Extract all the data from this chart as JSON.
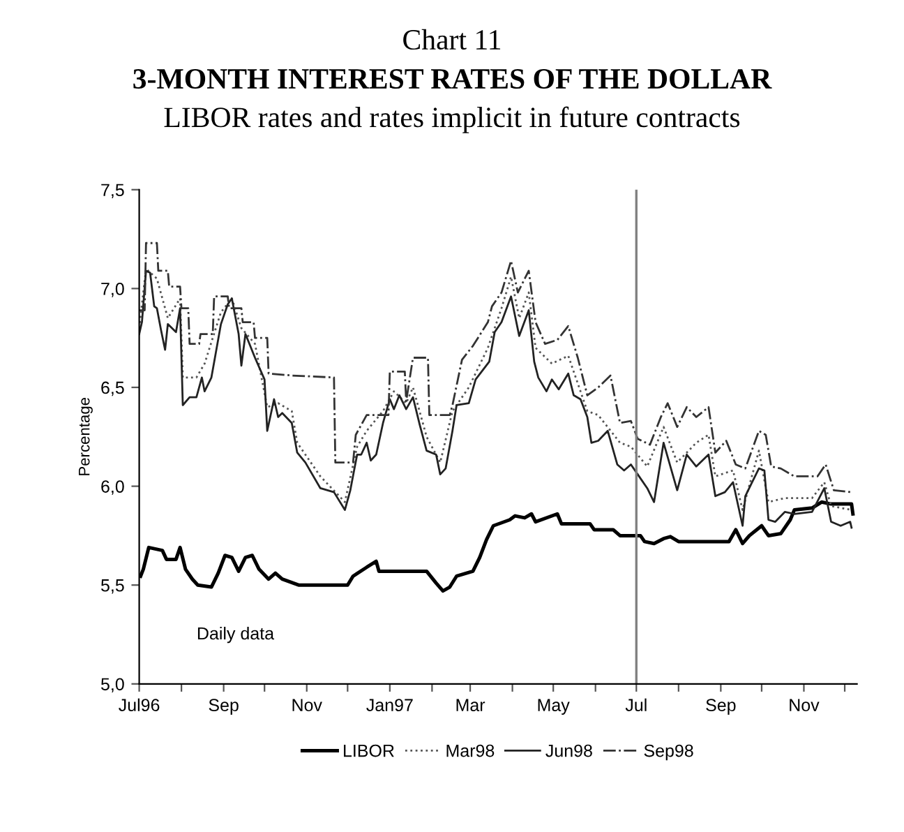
{
  "chart_data": {
    "type": "line",
    "title": "Chart 11",
    "subtitle": "3-MONTH INTEREST RATES OF THE DOLLAR\nLIBOR rates and rates implicit in future contracts",
    "ylabel": "Percentage",
    "xlim": [
      "1996-07-01",
      "1997-12-10"
    ],
    "xticks": [
      {
        "value": "1996-07-01",
        "label": "Jul96"
      },
      {
        "value": "1996-08-01",
        "label": null
      },
      {
        "value": "1996-09-01",
        "label": "Sep"
      },
      {
        "value": "1996-10-01",
        "label": null
      },
      {
        "value": "1996-11-01",
        "label": "Nov"
      },
      {
        "value": "1996-12-01",
        "label": null
      },
      {
        "value": "1997-01-01",
        "label": "Jan97"
      },
      {
        "value": "1997-02-01",
        "label": null
      },
      {
        "value": "1997-03-01",
        "label": "Mar"
      },
      {
        "value": "1997-04-01",
        "label": null
      },
      {
        "value": "1997-05-01",
        "label": "May"
      },
      {
        "value": "1997-06-01",
        "label": null
      },
      {
        "value": "1997-07-01",
        "label": "Jul"
      },
      {
        "value": "1997-08-01",
        "label": null
      },
      {
        "value": "1997-09-01",
        "label": "Sep"
      },
      {
        "value": "1997-10-01",
        "label": null
      },
      {
        "value": "1997-11-01",
        "label": "Nov"
      },
      {
        "value": "1997-12-01",
        "label": null
      }
    ],
    "ylim": [
      5.0,
      7.5
    ],
    "yticks": [
      {
        "value": 5.0,
        "label": "5,0"
      },
      {
        "value": 5.5,
        "label": "5,5"
      },
      {
        "value": 6.0,
        "label": "6,0"
      },
      {
        "value": 6.5,
        "label": "6,5"
      },
      {
        "value": 7.0,
        "label": "7,0"
      },
      {
        "value": 7.5,
        "label": "7,5"
      }
    ],
    "grid": false,
    "legend": "bottom",
    "marker": "none",
    "ref_lines": [
      {
        "axis": "x",
        "value": "1997-07-01",
        "color": "#808080"
      }
    ],
    "annotations": [
      "Daily data"
    ],
    "series": [
      {
        "name": "LIBOR",
        "color": "#000000",
        "line_style": "solid",
        "x": [
          "1996-07-02",
          "1996-07-04",
          "1996-07-08",
          "1996-07-18",
          "1996-07-21",
          "1996-07-28",
          "1996-07-31",
          "1996-08-04",
          "1996-08-09",
          "1996-08-13",
          "1996-08-23",
          "1996-08-28",
          "1996-09-02",
          "1996-09-07",
          "1996-09-12",
          "1996-09-17",
          "1996-09-22",
          "1996-09-27",
          "1996-10-04",
          "1996-10-09",
          "1996-10-14",
          "1996-10-26",
          "1996-12-01",
          "1996-12-05",
          "1996-12-15",
          "1996-12-22",
          "1996-12-24",
          "1997-01-28",
          "1997-02-04",
          "1997-02-09",
          "1997-02-14",
          "1997-02-19",
          "1997-03-03",
          "1997-03-08",
          "1997-03-13",
          "1997-03-18",
          "1997-03-30",
          "1997-04-03",
          "1997-04-10",
          "1997-04-15",
          "1997-04-18",
          "1997-05-04",
          "1997-05-07",
          "1997-05-28",
          "1997-05-31",
          "1997-06-14",
          "1997-06-19",
          "1997-07-04",
          "1997-07-07",
          "1997-07-14",
          "1997-07-21",
          "1997-07-26",
          "1997-08-01",
          "1997-09-07",
          "1997-09-12",
          "1997-09-17",
          "1997-09-22",
          "1997-10-01",
          "1997-10-06",
          "1997-10-15",
          "1997-10-22",
          "1997-10-25",
          "1997-11-07",
          "1997-11-14",
          "1997-11-21",
          "1997-12-06",
          "1997-12-07"
        ],
        "values": [
          5.545,
          5.58,
          5.69,
          5.675,
          5.63,
          5.63,
          5.69,
          5.58,
          5.53,
          5.5,
          5.49,
          5.56,
          5.65,
          5.64,
          5.57,
          5.64,
          5.65,
          5.58,
          5.53,
          5.56,
          5.53,
          5.5,
          5.5,
          5.545,
          5.59,
          5.62,
          5.57,
          5.57,
          5.51,
          5.47,
          5.49,
          5.545,
          5.57,
          5.64,
          5.73,
          5.8,
          5.83,
          5.85,
          5.84,
          5.86,
          5.82,
          5.86,
          5.81,
          5.81,
          5.78,
          5.78,
          5.75,
          5.75,
          5.72,
          5.71,
          5.735,
          5.745,
          5.72,
          5.72,
          5.78,
          5.71,
          5.75,
          5.8,
          5.75,
          5.76,
          5.83,
          5.88,
          5.89,
          5.92,
          5.91,
          5.91,
          5.86
        ]
      },
      {
        "name": "Mar98",
        "color": "#555555",
        "line_style": "dotted",
        "x": [
          "1996-07-01",
          "1996-07-06",
          "1996-07-14",
          "1996-07-22",
          "1996-07-31",
          "1996-08-02",
          "1996-08-12",
          "1996-08-18",
          "1996-08-30",
          "1996-09-07",
          "1996-09-14",
          "1996-09-24",
          "1996-10-03",
          "1996-10-11",
          "1996-10-21",
          "1996-10-25",
          "1996-11-11",
          "1996-11-29",
          "1996-12-08",
          "1996-12-15",
          "1996-12-27",
          "1997-01-04",
          "1997-01-13",
          "1997-01-18",
          "1997-01-28",
          "1997-02-07",
          "1997-02-16",
          "1997-02-28",
          "1997-03-14",
          "1997-03-24",
          "1997-03-31",
          "1997-04-06",
          "1997-04-13",
          "1997-04-18",
          "1997-04-30",
          "1997-05-12",
          "1997-05-26",
          "1997-06-03",
          "1997-06-19",
          "1997-06-27",
          "1997-07-09",
          "1997-07-21",
          "1997-07-31",
          "1997-08-14",
          "1997-08-23",
          "1997-08-28",
          "1997-09-10",
          "1997-09-17",
          "1997-09-29",
          "1997-10-06",
          "1997-10-18",
          "1997-11-07",
          "1997-11-16",
          "1997-11-21",
          "1997-12-06"
        ],
        "values": [
          6.8,
          7.1,
          7.05,
          6.85,
          6.95,
          6.55,
          6.55,
          6.62,
          6.88,
          6.95,
          6.8,
          6.72,
          6.4,
          6.42,
          6.38,
          6.22,
          6.05,
          5.92,
          6.2,
          6.28,
          6.38,
          6.48,
          6.42,
          6.5,
          6.25,
          6.12,
          6.38,
          6.5,
          6.7,
          6.9,
          7.06,
          6.85,
          6.98,
          6.7,
          6.62,
          6.66,
          6.38,
          6.36,
          6.22,
          6.2,
          6.1,
          6.3,
          6.12,
          6.22,
          6.26,
          6.05,
          6.08,
          5.88,
          6.18,
          5.92,
          5.94,
          5.94,
          6.02,
          5.9,
          5.88
        ]
      },
      {
        "name": "Jun98",
        "color": "#222222",
        "line_style": "solid",
        "x": [
          "1996-07-01",
          "1996-07-03",
          "1996-07-06",
          "1996-07-09",
          "1996-07-12",
          "1996-07-14",
          "1996-07-17",
          "1996-07-20",
          "1996-07-22",
          "1996-07-28",
          "1996-07-31",
          "1996-08-02",
          "1996-08-07",
          "1996-08-12",
          "1996-08-16",
          "1996-08-18",
          "1996-08-23",
          "1996-08-30",
          "1996-09-04",
          "1996-09-07",
          "1996-09-12",
          "1996-09-14",
          "1996-09-17",
          "1996-09-24",
          "1996-10-01",
          "1996-10-03",
          "1996-10-08",
          "1996-10-11",
          "1996-10-14",
          "1996-10-21",
          "1996-10-25",
          "1996-10-31",
          "1996-11-11",
          "1996-11-21",
          "1996-11-29",
          "1996-12-03",
          "1996-12-08",
          "1996-12-11",
          "1996-12-15",
          "1996-12-18",
          "1996-12-22",
          "1996-12-27",
          "1997-01-01",
          "1997-01-04",
          "1997-01-08",
          "1997-01-13",
          "1997-01-18",
          "1997-01-23",
          "1997-01-28",
          "1997-02-04",
          "1997-02-07",
          "1997-02-11",
          "1997-02-16",
          "1997-02-19",
          "1997-02-28",
          "1997-03-05",
          "1997-03-15",
          "1997-03-19",
          "1997-03-24",
          "1997-03-31",
          "1997-04-06",
          "1997-04-13",
          "1997-04-17",
          "1997-04-20",
          "1997-04-26",
          "1997-04-30",
          "1997-05-05",
          "1997-05-12",
          "1997-05-16",
          "1997-05-21",
          "1997-05-26",
          "1997-05-29",
          "1997-06-03",
          "1997-06-10",
          "1997-06-17",
          "1997-06-22",
          "1997-06-27",
          "1997-07-02",
          "1997-07-09",
          "1997-07-14",
          "1997-07-21",
          "1997-07-31",
          "1997-08-07",
          "1997-08-14",
          "1997-08-23",
          "1997-08-28",
          "1997-09-04",
          "1997-09-10",
          "1997-09-17",
          "1997-09-19",
          "1997-09-24",
          "1997-09-29",
          "1997-10-03",
          "1997-10-06",
          "1997-10-11",
          "1997-10-18",
          "1997-10-25",
          "1997-11-07",
          "1997-11-16",
          "1997-11-21",
          "1997-11-28",
          "1997-12-05",
          "1997-12-06"
        ],
        "values": [
          6.77,
          6.83,
          7.09,
          7.08,
          6.91,
          6.9,
          6.79,
          6.69,
          6.82,
          6.78,
          6.9,
          6.41,
          6.45,
          6.45,
          6.55,
          6.48,
          6.55,
          6.82,
          6.92,
          6.95,
          6.77,
          6.61,
          6.77,
          6.65,
          6.54,
          6.28,
          6.44,
          6.35,
          6.37,
          6.32,
          6.17,
          6.12,
          5.99,
          5.97,
          5.88,
          5.98,
          6.16,
          6.16,
          6.22,
          6.13,
          6.16,
          6.32,
          6.44,
          6.39,
          6.46,
          6.39,
          6.45,
          6.31,
          6.18,
          6.16,
          6.06,
          6.09,
          6.28,
          6.41,
          6.42,
          6.54,
          6.63,
          6.78,
          6.83,
          6.96,
          6.76,
          6.89,
          6.63,
          6.55,
          6.48,
          6.54,
          6.49,
          6.57,
          6.46,
          6.44,
          6.35,
          6.22,
          6.23,
          6.28,
          6.11,
          6.08,
          6.11,
          6.06,
          5.99,
          5.92,
          6.22,
          5.98,
          6.16,
          6.1,
          6.16,
          5.95,
          5.97,
          6.02,
          5.8,
          5.95,
          6.02,
          6.09,
          6.08,
          5.83,
          5.82,
          5.87,
          5.86,
          5.87,
          5.99,
          5.82,
          5.8,
          5.82,
          5.79
        ]
      },
      {
        "name": "Sep98",
        "color": "#333333",
        "line_style": "dashdot",
        "x": [
          "1996-07-01",
          "1996-07-05",
          "1996-07-06",
          "1996-07-14",
          "1996-07-15",
          "1996-07-22",
          "1996-07-23",
          "1996-07-31",
          "1996-08-01",
          "1996-08-06",
          "1996-08-07",
          "1996-08-14",
          "1996-08-15",
          "1996-08-24",
          "1996-08-25",
          "1996-09-04",
          "1996-09-05",
          "1996-09-14",
          "1996-09-15",
          "1996-09-23",
          "1996-09-24",
          "1996-10-03",
          "1996-10-04",
          "1996-10-21",
          "1996-11-21",
          "1996-11-22",
          "1996-12-05",
          "1996-12-07",
          "1996-12-15",
          "1996-12-31",
          "1997-01-01",
          "1997-01-12",
          "1997-01-13",
          "1997-01-18",
          "1997-01-29",
          "1997-01-30",
          "1997-02-14",
          "1997-02-16",
          "1997-02-23",
          "1997-03-03",
          "1997-03-14",
          "1997-03-17",
          "1997-03-24",
          "1997-03-31",
          "1997-04-05",
          "1997-04-13",
          "1997-04-18",
          "1997-04-25",
          "1997-05-04",
          "1997-05-12",
          "1997-05-19",
          "1997-05-26",
          "1997-06-03",
          "1997-06-12",
          "1997-06-19",
          "1997-06-27",
          "1997-07-02",
          "1997-07-11",
          "1997-07-19",
          "1997-07-24",
          "1997-07-31",
          "1997-08-07",
          "1997-08-14",
          "1997-08-23",
          "1997-08-28",
          "1997-09-05",
          "1997-09-12",
          "1997-09-19",
          "1997-09-29",
          "1997-10-04",
          "1997-10-08",
          "1997-10-15",
          "1997-10-25",
          "1997-11-11",
          "1997-11-17",
          "1997-11-23",
          "1997-12-06"
        ],
        "values": [
          6.89,
          6.89,
          7.23,
          7.23,
          7.09,
          7.09,
          7.01,
          7.01,
          6.9,
          6.9,
          6.72,
          6.72,
          6.77,
          6.77,
          6.96,
          6.96,
          6.9,
          6.9,
          6.83,
          6.83,
          6.75,
          6.75,
          6.57,
          6.56,
          6.55,
          6.12,
          6.12,
          6.26,
          6.36,
          6.36,
          6.58,
          6.58,
          6.43,
          6.65,
          6.65,
          6.36,
          6.36,
          6.41,
          6.64,
          6.71,
          6.83,
          6.91,
          6.98,
          7.14,
          6.98,
          7.09,
          6.83,
          6.72,
          6.74,
          6.81,
          6.65,
          6.46,
          6.5,
          6.56,
          6.32,
          6.33,
          6.24,
          6.21,
          6.35,
          6.42,
          6.3,
          6.4,
          6.35,
          6.4,
          6.17,
          6.23,
          6.11,
          6.09,
          6.28,
          6.26,
          6.1,
          6.09,
          6.05,
          6.05,
          6.11,
          5.98,
          5.97
        ]
      }
    ]
  }
}
